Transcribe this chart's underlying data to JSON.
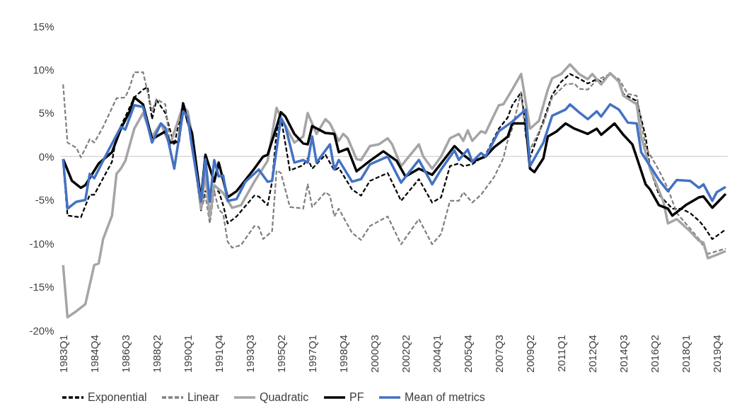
{
  "chart_data": {
    "type": "line",
    "xlim": [
      "1982-11-15",
      "2020-05-15"
    ],
    "xticks": [
      {
        "value": "1983-01",
        "label": "1983Q1"
      },
      {
        "value": "1984-10",
        "label": "1984Q4"
      },
      {
        "value": "1986-07",
        "label": "1986Q3"
      },
      {
        "value": "1988-04",
        "label": "1988Q2"
      },
      {
        "value": "1990-01",
        "label": "1990Q1"
      },
      {
        "value": "1991-10",
        "label": "1991Q4"
      },
      {
        "value": "1993-07",
        "label": "1993Q3"
      },
      {
        "value": "1995-04",
        "label": "1995Q2"
      },
      {
        "value": "1997-01",
        "label": "1997Q1"
      },
      {
        "value": "1998-10",
        "label": "1998Q4"
      },
      {
        "value": "2000-07",
        "label": "2000Q3"
      },
      {
        "value": "2002-04",
        "label": "2002Q2"
      },
      {
        "value": "2004-01",
        "label": "2004Q1"
      },
      {
        "value": "2005-10",
        "label": "2005Q4"
      },
      {
        "value": "2007-07",
        "label": "2007Q3"
      },
      {
        "value": "2009-04",
        "label": "2009Q2"
      },
      {
        "value": "2011-01",
        "label": "2011Q1"
      },
      {
        "value": "2012-10",
        "label": "2012Q4"
      },
      {
        "value": "2014-07",
        "label": "2014Q3"
      },
      {
        "value": "2016-04",
        "label": "2016Q2"
      },
      {
        "value": "2018-01",
        "label": "2018Q1"
      },
      {
        "value": "2019-10",
        "label": "2019Q4"
      }
    ],
    "ylim": [
      -20,
      15
    ],
    "yticks": [
      {
        "value": -20,
        "label": "-20%"
      },
      {
        "value": -15,
        "label": "-15%"
      },
      {
        "value": -10,
        "label": "-10%"
      },
      {
        "value": -5,
        "label": "-5%"
      },
      {
        "value": 0,
        "label": "0%"
      },
      {
        "value": 5,
        "label": "5%"
      },
      {
        "value": 10,
        "label": "10%"
      },
      {
        "value": 15,
        "label": "15%"
      }
    ],
    "grid": false,
    "legend": "bottom",
    "marker": "none",
    "ref_lines": [
      {
        "axis": "y",
        "value": 0,
        "color": "#d9d9d9"
      }
    ],
    "series": [
      {
        "name": "Exponential",
        "color": "#000000",
        "line_style": "dashed",
        "x": [
          "1983-01",
          "1983-04",
          "1984-01",
          "1984-07",
          "1984-10",
          "1985-10",
          "1986-01",
          "1987-01",
          "1987-07",
          "1987-10",
          "1988-01",
          "1988-04",
          "1988-10",
          "1989-04",
          "1989-10",
          "1990-04",
          "1990-10",
          "1991-01",
          "1991-10",
          "1992-01",
          "1992-04",
          "1992-10",
          "1993-10",
          "1994-01",
          "1994-07",
          "1994-10",
          "1995-01",
          "1995-04",
          "1995-10",
          "1996-07",
          "1996-10",
          "1997-01",
          "1997-10",
          "1998-04",
          "1998-07",
          "1999-04",
          "1999-10",
          "2000-04",
          "2001-04",
          "2002-01",
          "2003-01",
          "2003-10",
          "2004-04",
          "2004-10",
          "2005-04",
          "2005-07",
          "2006-01",
          "2006-10",
          "2007-07",
          "2008-01",
          "2008-04",
          "2008-10",
          "2009-01",
          "2009-04",
          "2010-01",
          "2010-07",
          "2011-01",
          "2011-07",
          "2012-01",
          "2012-07",
          "2013-01",
          "2013-04",
          "2013-10",
          "2014-04",
          "2014-07",
          "2015-04",
          "2015-10",
          "2016-01",
          "2016-07",
          "2017-04",
          "2017-10",
          "2018-04",
          "2018-10",
          "2019-01",
          "2019-07",
          "2020-04"
        ],
        "values": [
          -0.3,
          -6.8,
          -7,
          -4.4,
          -4.4,
          -0.6,
          2.4,
          6.8,
          7.7,
          8,
          4.3,
          6.5,
          5,
          1.3,
          6.3,
          2,
          -6.2,
          -4,
          -4,
          -5.6,
          -7.7,
          -6.9,
          -4.5,
          -4.6,
          -5.6,
          -2.9,
          2.9,
          4.5,
          -1.6,
          -1,
          -0.2,
          -1.4,
          0.2,
          -1.6,
          -1.3,
          -3.8,
          -4.5,
          -2.8,
          -1.9,
          -5.1,
          -2.6,
          -5.3,
          -4.7,
          -1.1,
          -0.8,
          -1.1,
          -0.9,
          0.2,
          3.2,
          4.5,
          5.9,
          7.4,
          3.4,
          -0.1,
          4.1,
          7.1,
          8.6,
          9.5,
          9,
          8.4,
          8.9,
          8.6,
          9.5,
          8.7,
          7.2,
          6.4,
          2.3,
          -1.4,
          -4.4,
          -6,
          -6,
          -6.5,
          -7.4,
          -8,
          -9.5,
          -8.4
        ]
      },
      {
        "name": "Linear",
        "color": "#808080",
        "line_style": "dashed",
        "x": [
          "1983-01",
          "1983-04",
          "1983-10",
          "1984-01",
          "1984-07",
          "1984-10",
          "1985-04",
          "1986-01",
          "1986-07",
          "1986-10",
          "1987-01",
          "1987-07",
          "1988-01",
          "1988-04",
          "1988-10",
          "1989-01",
          "1989-10",
          "1990-01",
          "1990-04",
          "1990-10",
          "1991-01",
          "1991-04",
          "1991-07",
          "1991-10",
          "1992-01",
          "1992-04",
          "1992-07",
          "1993-01",
          "1993-10",
          "1994-01",
          "1994-04",
          "1994-10",
          "1995-01",
          "1995-04",
          "1995-10",
          "1996-07",
          "1996-10",
          "1997-01",
          "1997-10",
          "1998-01",
          "1998-04",
          "1998-07",
          "1999-04",
          "1999-10",
          "2000-04",
          "2001-04",
          "2002-01",
          "2003-01",
          "2003-10",
          "2004-04",
          "2004-10",
          "2005-04",
          "2005-07",
          "2006-01",
          "2006-07",
          "2007-04",
          "2007-10",
          "2008-01",
          "2008-04",
          "2008-10",
          "2009-01",
          "2009-04",
          "2010-01",
          "2010-07",
          "2011-04",
          "2011-10",
          "2012-01",
          "2012-07",
          "2013-01",
          "2013-10",
          "2014-04",
          "2014-10",
          "2015-04",
          "2015-10",
          "2016-07",
          "2017-01",
          "2017-07",
          "2018-04",
          "2018-10",
          "2019-04",
          "2020-04"
        ],
        "values": [
          8.3,
          1.6,
          1,
          -0.1,
          2,
          1.6,
          3.4,
          6.7,
          6.8,
          8,
          9.7,
          9.7,
          5.2,
          6.6,
          6,
          1.4,
          6,
          5,
          1.6,
          -6.1,
          -4.5,
          -7.7,
          -4,
          -6.1,
          -6.6,
          -9.8,
          -10.5,
          -10.2,
          -8,
          -8.1,
          -9.5,
          -8.6,
          -1.6,
          -1.9,
          -5.8,
          -6,
          -3.2,
          -5.8,
          -4.1,
          -4.5,
          -6.9,
          -6,
          -8.8,
          -9.6,
          -8,
          -6.9,
          -10.1,
          -7.2,
          -10.1,
          -8.9,
          -5.1,
          -5.1,
          -4.1,
          -5.3,
          -4.4,
          -2.3,
          -0.2,
          1.9,
          3.2,
          7.4,
          2.3,
          0.8,
          3.8,
          6.8,
          8.3,
          8.4,
          7.8,
          7.7,
          8.8,
          9.5,
          8.9,
          7.2,
          7,
          1.1,
          -1.6,
          -3.7,
          -6.5,
          -8.3,
          -9.5,
          -11.2,
          -10.6
        ]
      },
      {
        "name": "Quadratic",
        "color": "#a5a5a5",
        "line_style": "solid",
        "x": [
          "1983-01",
          "1983-04",
          "1983-10",
          "1984-04",
          "1984-10",
          "1985-01",
          "1985-04",
          "1985-10",
          "1986-01",
          "1986-04",
          "1986-07",
          "1987-01",
          "1987-07",
          "1988-01",
          "1988-07",
          "1989-01",
          "1989-10",
          "1990-01",
          "1990-04",
          "1990-10",
          "1991-01",
          "1991-04",
          "1991-07",
          "1992-01",
          "1992-07",
          "1993-01",
          "1993-10",
          "1994-07",
          "1995-01",
          "1995-04",
          "1996-01",
          "1996-07",
          "1996-10",
          "1997-04",
          "1997-10",
          "1998-01",
          "1998-07",
          "1998-10",
          "1999-01",
          "1999-07",
          "1999-10",
          "2000-04",
          "2000-10",
          "2001-04",
          "2001-07",
          "2002-01",
          "2003-01",
          "2003-04",
          "2003-10",
          "2004-04",
          "2004-10",
          "2005-04",
          "2005-07",
          "2005-10",
          "2006-01",
          "2006-07",
          "2006-10",
          "2007-01",
          "2007-07",
          "2007-10",
          "2008-04",
          "2008-10",
          "2009-04",
          "2009-10",
          "2010-04",
          "2010-07",
          "2011-01",
          "2011-07",
          "2012-01",
          "2012-07",
          "2012-10",
          "2013-04",
          "2013-10",
          "2014-04",
          "2014-07",
          "2015-04",
          "2015-07",
          "2016-01",
          "2016-10",
          "2017-01",
          "2017-07",
          "2018-04",
          "2018-10",
          "2019-01",
          "2019-04",
          "2020-04"
        ],
        "values": [
          -12.5,
          -18.5,
          -17.8,
          -17,
          -12.5,
          -12.3,
          -9.5,
          -6.8,
          -2,
          -1.4,
          -0.5,
          3.2,
          5,
          2.3,
          3.8,
          1.3,
          5.8,
          5.2,
          2.5,
          -6,
          -2,
          -7,
          -3.3,
          -4.2,
          -5.9,
          -5.6,
          -2.9,
          -0.5,
          5.6,
          4.5,
          1.6,
          2.3,
          5,
          2.6,
          4.3,
          3.8,
          1.8,
          2.6,
          2.1,
          -0.3,
          -0.4,
          1.2,
          1.4,
          2.1,
          1.4,
          -1.1,
          1.4,
          0,
          -1.4,
          0,
          2.1,
          2.6,
          1.8,
          3,
          1.8,
          2.9,
          2.7,
          3.8,
          5.9,
          6,
          7.7,
          9.5,
          3.2,
          4.1,
          7.7,
          9,
          9.5,
          10.6,
          9.5,
          8.9,
          9.5,
          8.3,
          9.6,
          8.6,
          7,
          6,
          2.3,
          -1.4,
          -5.2,
          -7.7,
          -7.2,
          -8.6,
          -9.7,
          -9.9,
          -11.7,
          -10.9
        ]
      },
      {
        "name": "PF",
        "color": "#000000",
        "line_style": "solid",
        "x": [
          "1983-01",
          "1983-07",
          "1984-01",
          "1984-04",
          "1985-01",
          "1985-10",
          "1986-04",
          "1986-10",
          "1987-01",
          "1987-07",
          "1988-01",
          "1988-10",
          "1989-01",
          "1989-07",
          "1989-10",
          "1990-01",
          "1990-04",
          "1990-10",
          "1991-01",
          "1991-07",
          "1991-10",
          "1992-04",
          "1992-10",
          "1993-10",
          "1994-04",
          "1994-07",
          "1995-01",
          "1995-04",
          "1995-07",
          "1996-01",
          "1996-07",
          "1996-10",
          "1997-01",
          "1997-10",
          "1998-04",
          "1998-07",
          "1999-01",
          "1999-07",
          "2000-04",
          "2001-01",
          "2001-10",
          "2002-04",
          "2003-01",
          "2003-10",
          "2004-04",
          "2005-01",
          "2005-07",
          "2006-01",
          "2006-10",
          "2007-04",
          "2008-01",
          "2008-04",
          "2009-01",
          "2009-04",
          "2009-07",
          "2010-01",
          "2010-04",
          "2010-10",
          "2011-04",
          "2011-10",
          "2012-07",
          "2013-01",
          "2013-04",
          "2014-01",
          "2014-07",
          "2015-01",
          "2015-04",
          "2015-10",
          "2016-01",
          "2016-07",
          "2017-01",
          "2017-04",
          "2018-01",
          "2018-10",
          "2019-01",
          "2019-07",
          "2020-04"
        ],
        "values": [
          -0.3,
          -2.8,
          -3.6,
          -3.3,
          -0.8,
          0.5,
          3.2,
          5.2,
          6.8,
          6,
          2,
          2.9,
          1.6,
          1.7,
          6.1,
          4,
          2.7,
          -5,
          0.2,
          -2.9,
          -0.7,
          -4.7,
          -4,
          -1.4,
          0,
          0.2,
          3.4,
          5.1,
          4.6,
          2.6,
          1.5,
          1.4,
          3.5,
          2.7,
          2.6,
          0.5,
          0.9,
          -1.7,
          -0.5,
          0.6,
          -0.5,
          -2.3,
          -1.4,
          -2.1,
          -0.8,
          1.2,
          0.2,
          -0.6,
          0,
          1.1,
          2.3,
          3.8,
          3.8,
          -1.4,
          -1.8,
          -0.2,
          2.3,
          2.9,
          3.8,
          3.2,
          2.6,
          3.2,
          2.5,
          3.8,
          2.5,
          1.4,
          -0.1,
          -3.2,
          -3.8,
          -5.6,
          -6,
          -6.8,
          -5.6,
          -4.7,
          -4.6,
          -5.9,
          -4.3
        ]
      },
      {
        "name": "Mean of metrics",
        "color": "#4472c4",
        "line_style": "solid",
        "x": [
          "1983-01",
          "1983-04",
          "1983-10",
          "1984-04",
          "1984-07",
          "1984-10",
          "1985-07",
          "1986-04",
          "1986-07",
          "1987-01",
          "1987-07",
          "1988-01",
          "1988-07",
          "1988-10",
          "1989-04",
          "1989-10",
          "1990-01",
          "1990-04",
          "1990-10",
          "1991-01",
          "1991-04",
          "1991-07",
          "1991-10",
          "1992-01",
          "1992-04",
          "1992-10",
          "1993-04",
          "1994-01",
          "1994-07",
          "1994-10",
          "1995-04",
          "1995-07",
          "1996-01",
          "1996-07",
          "1996-10",
          "1997-01",
          "1997-04",
          "1998-01",
          "1998-04",
          "1998-07",
          "1999-04",
          "1999-10",
          "2000-04",
          "2001-04",
          "2002-01",
          "2003-01",
          "2003-10",
          "2004-04",
          "2005-01",
          "2005-04",
          "2005-10",
          "2006-01",
          "2006-07",
          "2006-10",
          "2007-07",
          "2008-04",
          "2009-01",
          "2009-04",
          "2010-01",
          "2010-07",
          "2011-04",
          "2011-07",
          "2012-01",
          "2012-07",
          "2013-01",
          "2013-04",
          "2013-10",
          "2014-04",
          "2014-10",
          "2015-04",
          "2015-07",
          "2016-01",
          "2016-07",
          "2017-01",
          "2017-07",
          "2018-04",
          "2018-10",
          "2019-01",
          "2019-07",
          "2019-10",
          "2020-04"
        ],
        "values": [
          -0.3,
          -6,
          -5.2,
          -5,
          -2,
          -2.5,
          0.5,
          3.4,
          3.1,
          5.9,
          5.7,
          1.6,
          3.8,
          3.3,
          -1.4,
          5.2,
          4.6,
          1.1,
          -5.2,
          -0.3,
          -5.2,
          -0.4,
          -2.3,
          -2.2,
          -5.1,
          -4.9,
          -2.9,
          -1.5,
          -2.9,
          -2.8,
          4.4,
          3.5,
          -0.7,
          -0.4,
          -0.7,
          2.3,
          -0.7,
          1.4,
          -1.5,
          -0.4,
          -2.9,
          -2.6,
          -0.9,
          0,
          -3,
          -0.4,
          -3.2,
          -1.5,
          0.7,
          -0.4,
          0.8,
          -0.6,
          0.4,
          0,
          2.9,
          4,
          5.4,
          -1.1,
          1.6,
          4.7,
          5.4,
          6,
          5.1,
          4.3,
          5.2,
          4.6,
          6,
          5.4,
          3.9,
          3.8,
          0.5,
          -1.1,
          -2.7,
          -4,
          -2.7,
          -2.8,
          -3.6,
          -3.2,
          -5.1,
          -4.1,
          -3.5
        ]
      }
    ]
  }
}
